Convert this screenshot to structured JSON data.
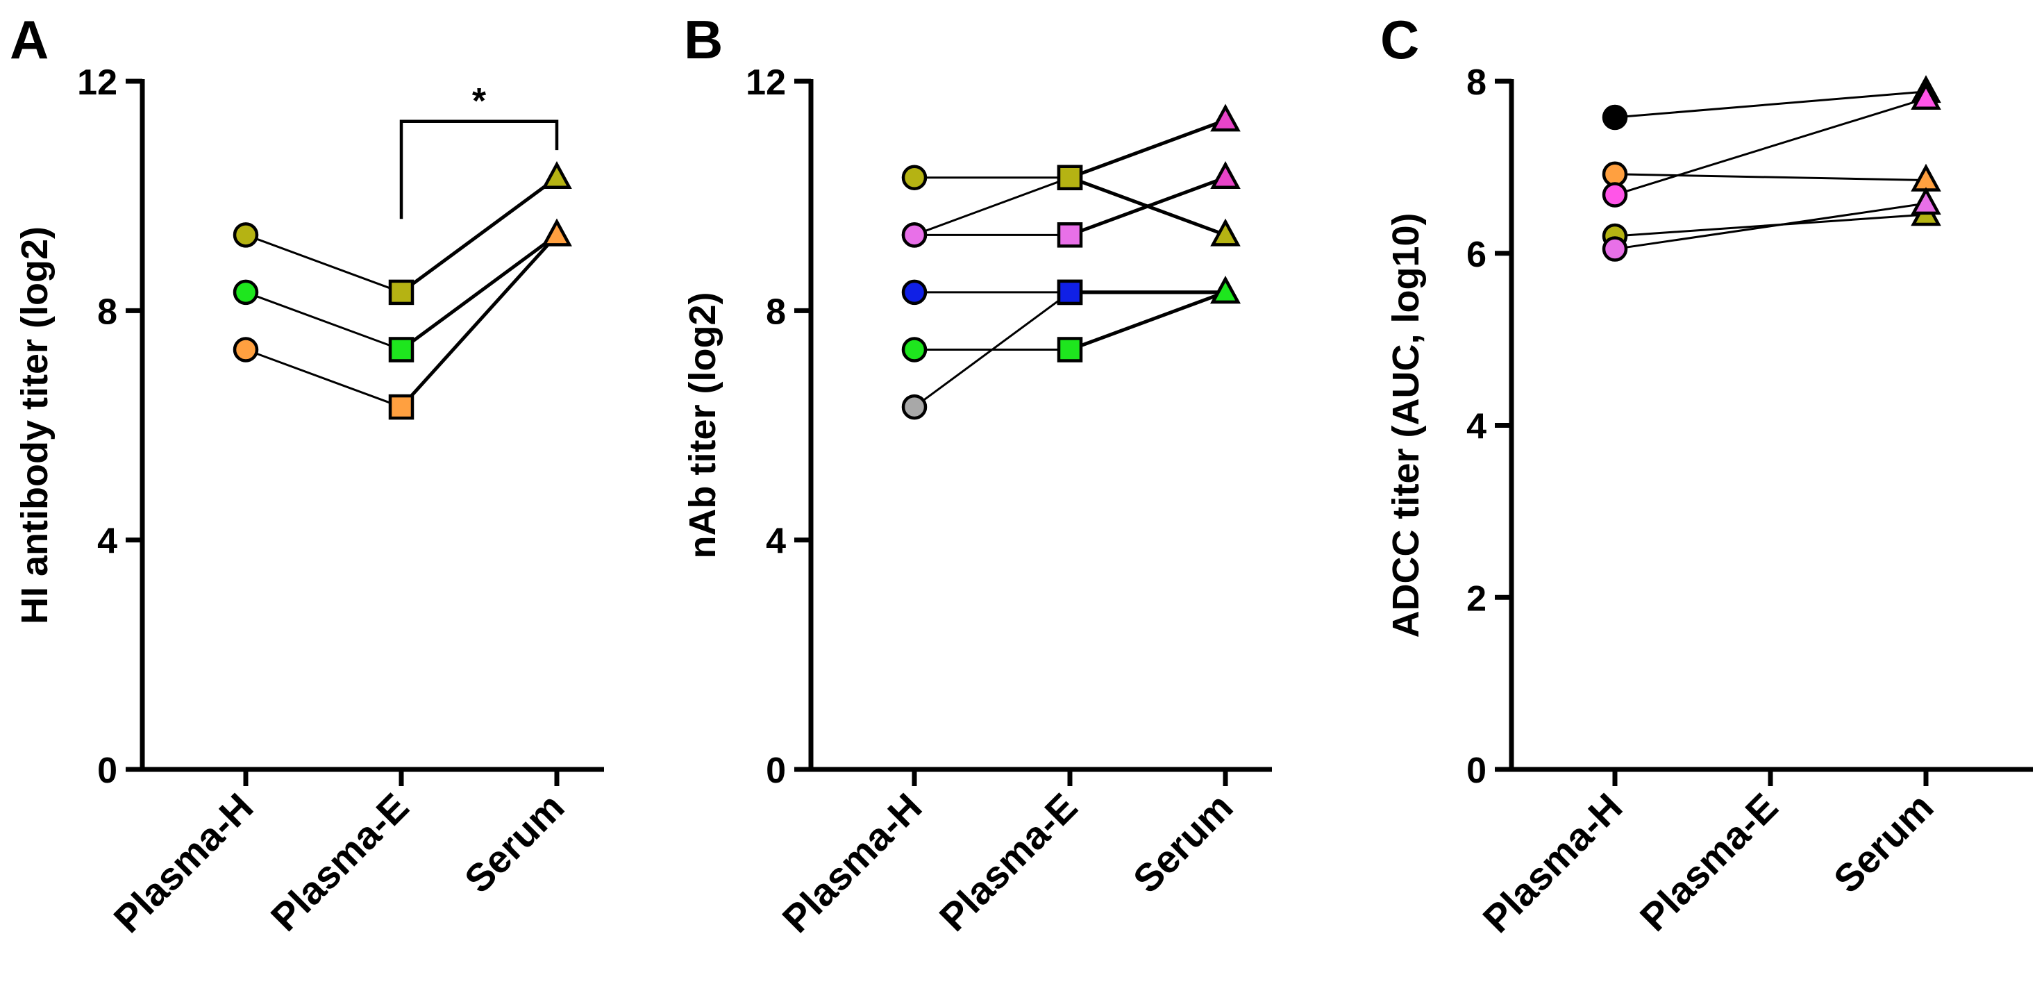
{
  "chart_data": [
    {
      "panel": "A",
      "type": "scatter",
      "title": "",
      "ylabel": "HI antibody titer (log2)",
      "xlabel": "",
      "categories": [
        "Plasma-H",
        "Plasma-E",
        "Serum"
      ],
      "markers": [
        "circle",
        "square",
        "triangle"
      ],
      "ylim": [
        0,
        12
      ],
      "yticks": [
        0,
        4,
        8,
        12
      ],
      "annotation": {
        "text": "*",
        "from": "Plasma-E",
        "to": "Serum",
        "bracket_y": 11.3,
        "left_drop": 9.6,
        "right_drop": 10.8
      },
      "series": [
        {
          "name": "s1",
          "color": "#b5b313",
          "values": [
            9.32,
            8.32,
            10.32
          ]
        },
        {
          "name": "s2",
          "color": "#1ee61e",
          "values": [
            8.32,
            7.32,
            9.32
          ]
        },
        {
          "name": "s3",
          "color": "#ffa040",
          "values": [
            7.32,
            6.32,
            9.32
          ]
        }
      ]
    },
    {
      "panel": "B",
      "type": "scatter",
      "title": "",
      "ylabel": "nAb titer  (log2)",
      "xlabel": "",
      "categories": [
        "Plasma-H",
        "Plasma-E",
        "Serum"
      ],
      "markers": [
        "circle",
        "square",
        "triangle"
      ],
      "ylim": [
        0,
        12
      ],
      "yticks": [
        0,
        4,
        8,
        12
      ],
      "series": [
        {
          "name": "s1",
          "colors": [
            "#b5b313",
            "#b5b313",
            "#b5b313"
          ],
          "values": [
            10.32,
            10.32,
            9.32
          ]
        },
        {
          "name": "s2",
          "colors": [
            "#e870e8",
            "#b5b313",
            "#e844c8"
          ],
          "values": [
            9.32,
            10.32,
            11.32
          ]
        },
        {
          "name": "s3",
          "colors": [
            "#e870e8",
            "#e870e8",
            "#e844c8"
          ],
          "values": [
            9.32,
            9.32,
            10.32
          ]
        },
        {
          "name": "s4",
          "colors": [
            "#1020e6",
            "#1020e6",
            "#1ee61e"
          ],
          "values": [
            8.32,
            8.32,
            8.32
          ]
        },
        {
          "name": "s5",
          "colors": [
            "#1ee61e",
            "#1ee61e",
            "#1ee61e"
          ],
          "values": [
            7.32,
            7.32,
            8.32
          ]
        },
        {
          "name": "s6",
          "colors": [
            "#a8a8a8",
            "#1020e6",
            "#1ee61e"
          ],
          "values": [
            6.32,
            8.32,
            8.32
          ]
        }
      ]
    },
    {
      "panel": "C",
      "type": "scatter",
      "title": "",
      "ylabel": "ADCC titer  (AUC, log10)",
      "xlabel": "",
      "categories": [
        "Plasma-H",
        "Plasma-E",
        "Serum"
      ],
      "markers": [
        "circle",
        "square",
        "triangle"
      ],
      "ylim": [
        0,
        8
      ],
      "yticks": [
        0,
        2,
        4,
        6,
        8
      ],
      "series": [
        {
          "name": "s1",
          "colors": [
            "#000000",
            null,
            "#000000"
          ],
          "values": [
            7.58,
            null,
            7.88
          ]
        },
        {
          "name": "s2",
          "colors": [
            "#ffa040",
            null,
            "#ffa040"
          ],
          "values": [
            6.92,
            null,
            6.85
          ]
        },
        {
          "name": "s3",
          "colors": [
            "#ff55e8",
            null,
            "#ff55e8"
          ],
          "values": [
            6.68,
            null,
            7.8
          ]
        },
        {
          "name": "s4",
          "colors": [
            "#b5b313",
            null,
            "#b5b313"
          ],
          "values": [
            6.2,
            null,
            6.45
          ]
        },
        {
          "name": "s5",
          "colors": [
            "#e870e8",
            null,
            "#e870e8"
          ],
          "values": [
            6.05,
            null,
            6.58
          ]
        }
      ]
    }
  ]
}
